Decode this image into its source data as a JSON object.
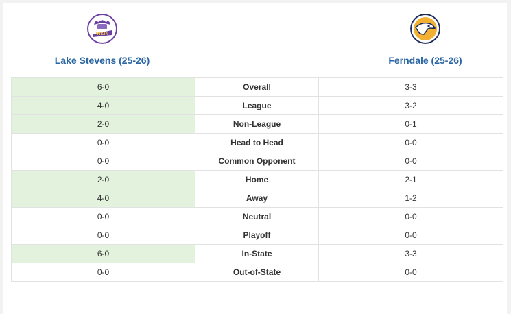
{
  "teams": {
    "left": {
      "name": "Lake Stevens (25-26)",
      "logo_icon": "vikings-logo-icon",
      "logo_colors": [
        "#6b3fa0",
        "#f2c23a"
      ]
    },
    "right": {
      "name": "Ferndale (25-26)",
      "logo_icon": "golden-eagles-logo-icon",
      "logo_colors": [
        "#f2b132",
        "#1b2a5a"
      ]
    }
  },
  "highlight_color": "#e2f2dc",
  "rows": [
    {
      "left": "6-0",
      "category": "Overall",
      "right": "3-3",
      "left_win": true
    },
    {
      "left": "4-0",
      "category": "League",
      "right": "3-2",
      "left_win": true
    },
    {
      "left": "2-0",
      "category": "Non-League",
      "right": "0-1",
      "left_win": true
    },
    {
      "left": "0-0",
      "category": "Head to Head",
      "right": "0-0",
      "left_win": false
    },
    {
      "left": "0-0",
      "category": "Common Opponent",
      "right": "0-0",
      "left_win": false
    },
    {
      "left": "2-0",
      "category": "Home",
      "right": "2-1",
      "left_win": true
    },
    {
      "left": "4-0",
      "category": "Away",
      "right": "1-2",
      "left_win": true
    },
    {
      "left": "0-0",
      "category": "Neutral",
      "right": "0-0",
      "left_win": false
    },
    {
      "left": "0-0",
      "category": "Playoff",
      "right": "0-0",
      "left_win": false
    },
    {
      "left": "6-0",
      "category": "In-State",
      "right": "3-3",
      "left_win": true
    },
    {
      "left": "0-0",
      "category": "Out-of-State",
      "right": "0-0",
      "left_win": false
    }
  ]
}
